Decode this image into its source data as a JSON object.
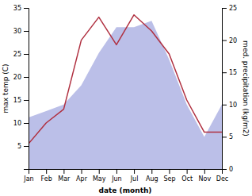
{
  "chart_data": {
    "type": "line",
    "xlabel": "date (month)",
    "ylabel": "max temp (C)",
    "y2label": "med. precipitation (kg/m2)",
    "categories": [
      "Jan",
      "Feb",
      "Mar",
      "Apr",
      "May",
      "Jun",
      "Jul",
      "Aug",
      "Sep",
      "Oct",
      "Nov",
      "Dec"
    ],
    "ylim": [
      0,
      35
    ],
    "yticks": [
      5,
      10,
      15,
      20,
      25,
      30,
      35
    ],
    "y2lim": [
      0,
      25
    ],
    "y2ticks": [
      0,
      5,
      10,
      15,
      20,
      25
    ],
    "series": [
      {
        "type": "area",
        "color": "#bbbfe8",
        "axis": "y2",
        "values": [
          8.0,
          9.0,
          10.0,
          13.0,
          18.0,
          22.0,
          22.0,
          23.0,
          17.0,
          10.0,
          5.0,
          10.0
        ]
      },
      {
        "type": "line",
        "color": "#b03040",
        "axis": "y",
        "values": [
          5.5,
          10.0,
          13.0,
          28.0,
          33.0,
          27.0,
          33.5,
          30.0,
          25.0,
          15.0,
          8.0,
          8.0
        ]
      }
    ]
  }
}
